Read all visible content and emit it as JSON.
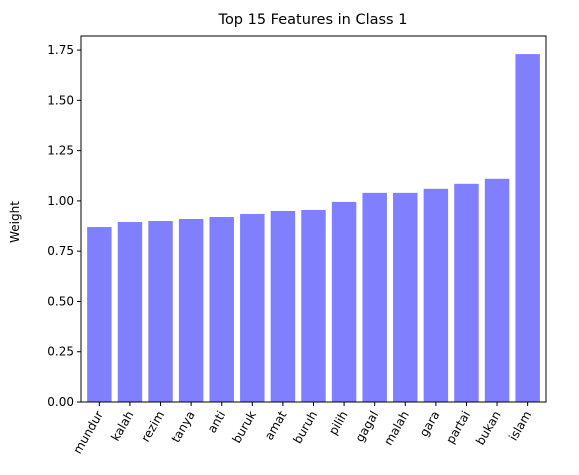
{
  "chart_data": {
    "type": "bar",
    "title": "Top 15 Features in Class 1",
    "xlabel": "",
    "ylabel": "Weight",
    "categories": [
      "mundur",
      "kalah",
      "rezim",
      "tanya",
      "anti",
      "buruk",
      "amat",
      "buruh",
      "pilih",
      "gagal",
      "malah",
      "gara",
      "partai",
      "bukan",
      "islam"
    ],
    "values": [
      0.87,
      0.895,
      0.9,
      0.91,
      0.92,
      0.935,
      0.95,
      0.955,
      0.995,
      1.04,
      1.04,
      1.06,
      1.085,
      1.11,
      1.73
    ],
    "yticks": [
      "0.00",
      "0.25",
      "0.50",
      "0.75",
      "1.00",
      "1.25",
      "1.50",
      "1.75"
    ],
    "ylim": [
      0,
      1.82
    ],
    "bar_color": "#8080ff",
    "grid": false,
    "legend": "none"
  }
}
